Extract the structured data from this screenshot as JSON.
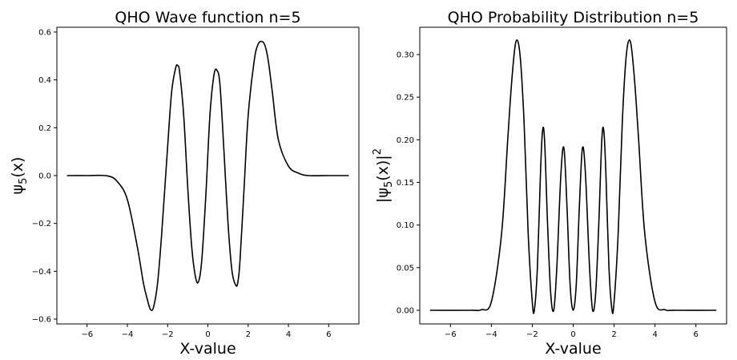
{
  "chart_data": [
    {
      "type": "line",
      "title": "QHO Wave function n=5",
      "xlabel": "X-value",
      "ylabel_base": "ψ",
      "ylabel_sub": "5",
      "ylabel_tail": "(x)",
      "xlim": [
        -7.5,
        7.5
      ],
      "ylim": [
        -0.62,
        0.62
      ],
      "x_ticks": [
        -6,
        -4,
        -2,
        0,
        2,
        4,
        6
      ],
      "x_tick_labels": [
        "−6",
        "−4",
        "−2",
        "0",
        "2",
        "4",
        "6"
      ],
      "y_ticks": [
        -0.6,
        -0.4,
        -0.2,
        0.0,
        0.2,
        0.4,
        0.6
      ],
      "y_tick_labels": [
        "−0.6",
        "−0.4",
        "−0.2",
        "0.0",
        "0.2",
        "0.4",
        "0.6"
      ],
      "grid": false,
      "line_color": "#000000",
      "x": [
        -7.0,
        -6.0,
        -5.0,
        -4.5,
        -4.0,
        -3.5,
        -3.2,
        -3.0,
        -2.85,
        -2.7,
        -2.5,
        -2.3,
        -2.0,
        -1.8,
        -1.6,
        -1.5,
        -1.4,
        -1.2,
        -1.0,
        -0.8,
        -0.6,
        -0.45,
        -0.3,
        -0.1,
        0.1,
        0.3,
        0.45,
        0.6,
        0.8,
        1.0,
        1.2,
        1.4,
        1.5,
        1.6,
        1.8,
        2.0,
        2.3,
        2.5,
        2.7,
        2.85,
        3.0,
        3.2,
        3.5,
        4.0,
        4.5,
        5.0,
        6.0,
        7.0
      ],
      "values": [
        0.0,
        0.0,
        -0.001,
        -0.025,
        -0.1,
        -0.3,
        -0.45,
        -0.52,
        -0.56,
        -0.55,
        -0.45,
        -0.25,
        0.12,
        0.35,
        0.45,
        0.46,
        0.43,
        0.25,
        -0.05,
        -0.3,
        -0.43,
        -0.44,
        -0.35,
        -0.08,
        0.25,
        0.42,
        0.44,
        0.38,
        0.1,
        -0.2,
        -0.4,
        -0.46,
        -0.44,
        -0.35,
        -0.05,
        0.25,
        0.48,
        0.55,
        0.56,
        0.54,
        0.48,
        0.35,
        0.15,
        0.04,
        0.01,
        0.0,
        0.0,
        0.0
      ]
    },
    {
      "type": "line",
      "title": "QHO Probability Distribution n=5",
      "xlabel": "X-value",
      "ylabel_base": "|ψ",
      "ylabel_sub": "5",
      "ylabel_tail": "(x)|",
      "ylabel_sup": "2",
      "xlim": [
        -7.5,
        7.5
      ],
      "ylim": [
        -0.016,
        0.332
      ],
      "x_ticks": [
        -6,
        -4,
        -2,
        0,
        2,
        4,
        6
      ],
      "x_tick_labels": [
        "−6",
        "−4",
        "−2",
        "0",
        "2",
        "4",
        "6"
      ],
      "y_ticks": [
        0.0,
        0.05,
        0.1,
        0.15,
        0.2,
        0.25,
        0.3
      ],
      "y_tick_labels": [
        "0.00",
        "0.05",
        "0.10",
        "0.15",
        "0.20",
        "0.25",
        "0.30"
      ],
      "grid": false,
      "line_color": "#000000",
      "x": [
        -7.0,
        -5.0,
        -4.5,
        -4.0,
        -3.5,
        -3.2,
        -3.0,
        -2.8,
        -2.6,
        -2.4,
        -2.2,
        -2.0,
        -1.9,
        -1.75,
        -1.6,
        -1.5,
        -1.4,
        -1.25,
        -1.1,
        -0.95,
        -0.8,
        -0.6,
        -0.45,
        -0.3,
        -0.15,
        0.0,
        0.15,
        0.3,
        0.45,
        0.6,
        0.8,
        0.95,
        1.1,
        1.25,
        1.4,
        1.5,
        1.6,
        1.75,
        1.9,
        2.0,
        2.2,
        2.4,
        2.6,
        2.8,
        3.0,
        3.2,
        3.5,
        4.0,
        4.5,
        5.0,
        7.0
      ],
      "values": [
        0.0,
        0.0,
        0.0006,
        0.01,
        0.09,
        0.2,
        0.27,
        0.315,
        0.3,
        0.22,
        0.09,
        0.01,
        0.0,
        0.05,
        0.16,
        0.21,
        0.2,
        0.1,
        0.02,
        0.0,
        0.05,
        0.16,
        0.19,
        0.12,
        0.03,
        0.0,
        0.03,
        0.12,
        0.19,
        0.16,
        0.05,
        0.0,
        0.02,
        0.1,
        0.2,
        0.21,
        0.16,
        0.05,
        0.0,
        0.01,
        0.09,
        0.22,
        0.3,
        0.315,
        0.27,
        0.2,
        0.09,
        0.01,
        0.0006,
        0.0,
        0.0
      ]
    }
  ]
}
